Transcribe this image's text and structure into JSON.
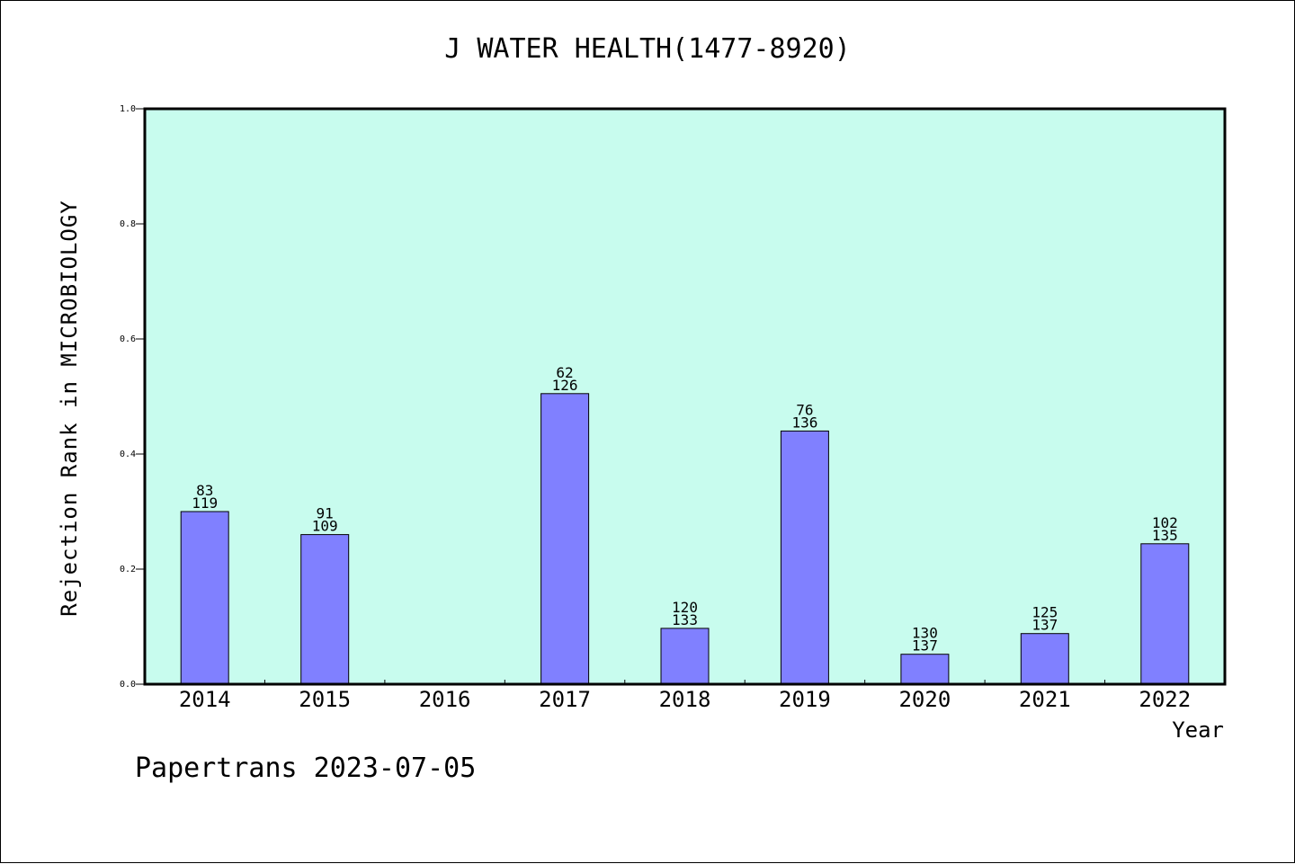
{
  "chart_data": {
    "type": "bar",
    "title": "J WATER HEALTH(1477-8920)",
    "xlabel": "Year",
    "ylabel": "Rejection Rank in MICROBIOLOGY",
    "ylim": [
      0,
      1.0
    ],
    "yticks": [
      "0.0",
      "0.2",
      "0.4",
      "0.6",
      "0.8",
      "1.0"
    ],
    "categories": [
      "2014",
      "2015",
      "2016",
      "2017",
      "2018",
      "2019",
      "2020",
      "2021",
      "2022"
    ],
    "values": [
      0.3,
      0.26,
      null,
      0.505,
      0.097,
      0.44,
      0.052,
      0.088,
      0.244
    ],
    "label_top": [
      "83",
      "91",
      "",
      "62",
      "120",
      "76",
      "130",
      "125",
      "102"
    ],
    "label_bottom": [
      "119",
      "109",
      "",
      "126",
      "133",
      "136",
      "137",
      "137",
      "135"
    ],
    "grid": false,
    "colors": {
      "bar": "#8080ff",
      "plot_bg": "#c8fcee",
      "axis": "#000000"
    }
  },
  "footer": "Papertrans 2023-07-05"
}
